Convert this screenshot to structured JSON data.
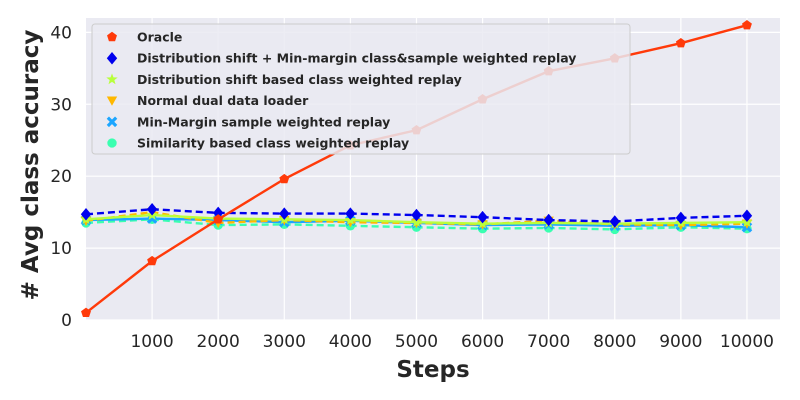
{
  "chart_data": {
    "type": "line",
    "title": "",
    "xlabel": "Steps",
    "ylabel": "# Avg class accuracy",
    "xlim": [
      0,
      10500
    ],
    "ylim": [
      0,
      42
    ],
    "grid": true,
    "legend_position": "top-left",
    "x_ticks": [
      "1000",
      "2000",
      "3000",
      "4000",
      "5000",
      "6000",
      "7000",
      "8000",
      "9000",
      "10000"
    ],
    "y_ticks": [
      "0",
      "10",
      "20",
      "30",
      "40"
    ],
    "x": [
      0,
      1000,
      2000,
      3000,
      4000,
      5000,
      6000,
      7000,
      8000,
      9000,
      10000
    ],
    "series": [
      {
        "name": "Oracle",
        "color": "#ff3a0a",
        "marker": "pentagon",
        "dash": "solid",
        "values": [
          1.0,
          8.2,
          14.0,
          19.6,
          24.3,
          26.4,
          30.7,
          34.6,
          36.4,
          38.5,
          41.0
        ]
      },
      {
        "name": "Distribution shift + Min-margin class&sample weighted replay",
        "color": "#0000ee",
        "marker": "diamond",
        "dash": "dashed",
        "values": [
          14.7,
          15.4,
          14.9,
          14.8,
          14.8,
          14.6,
          14.3,
          13.9,
          13.7,
          14.2,
          14.5
        ]
      },
      {
        "name": "Distribution shift based class weighted replay",
        "color": "#b8ff3c",
        "marker": "star",
        "dash": "solid",
        "values": [
          14.0,
          14.6,
          14.1,
          14.0,
          13.9,
          13.6,
          13.4,
          13.5,
          13.4,
          13.5,
          13.6
        ]
      },
      {
        "name": "Normal dual data loader",
        "color": "#ffb800",
        "marker": "triangle-down",
        "dash": "dashed",
        "values": [
          13.8,
          15.0,
          13.5,
          13.9,
          13.6,
          13.5,
          13.3,
          13.8,
          13.3,
          13.2,
          13.4
        ]
      },
      {
        "name": "Min-Margin sample weighted replay",
        "color": "#1ca6ff",
        "marker": "x",
        "dash": "solid",
        "values": [
          13.9,
          14.1,
          13.9,
          13.6,
          13.8,
          13.5,
          13.2,
          13.3,
          13.1,
          13.2,
          12.9
        ]
      },
      {
        "name": "Similarity based class weighted replay",
        "color": "#3affb0",
        "marker": "circle",
        "dash": "dashed",
        "values": [
          13.5,
          14.0,
          13.2,
          13.3,
          13.1,
          12.9,
          12.7,
          12.8,
          12.6,
          12.9,
          12.7
        ]
      }
    ]
  }
}
